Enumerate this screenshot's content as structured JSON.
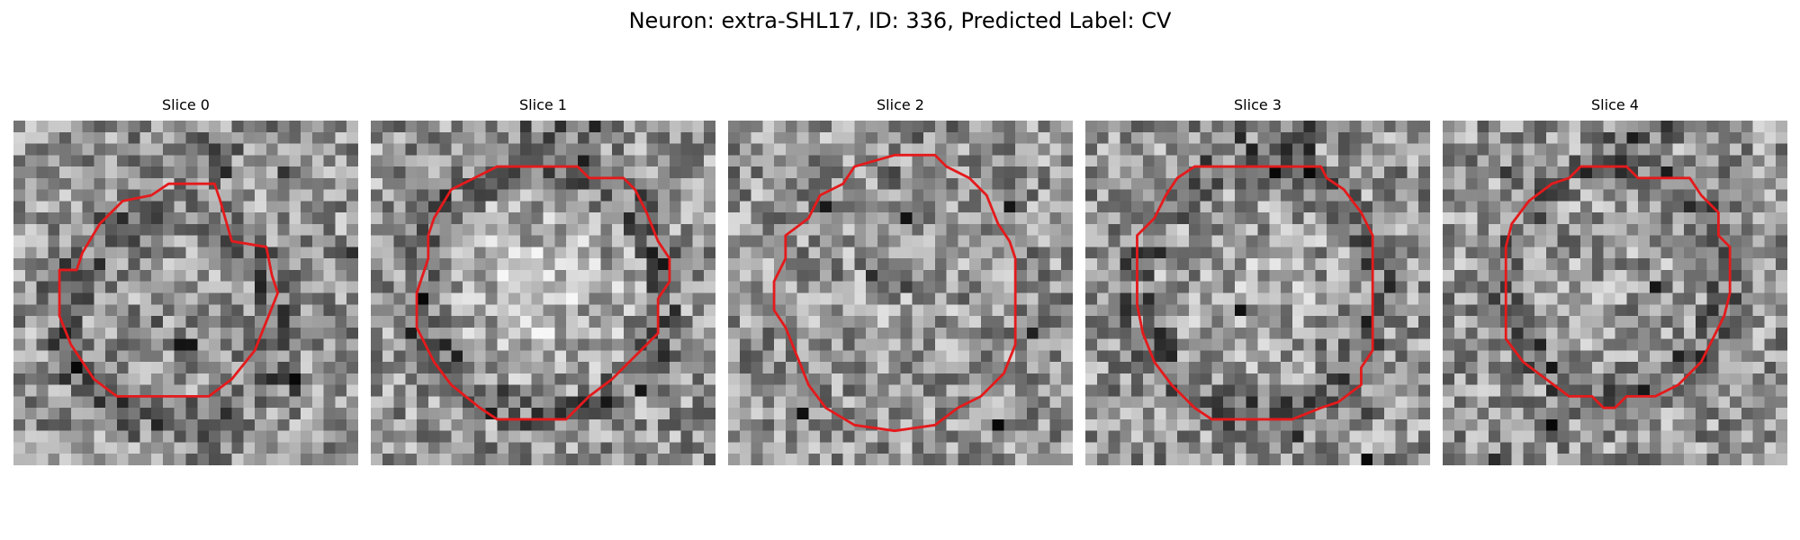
{
  "figure": {
    "title": "Neuron: extra-SHL17, ID: 336, Predicted Label: CV"
  },
  "colors": {
    "contour": "#e41a1c",
    "background": "#ffffff"
  },
  "panels": [
    {
      "title": "Slice 0",
      "seed": 101
    },
    {
      "title": "Slice 1",
      "seed": 202
    },
    {
      "title": "Slice 2",
      "seed": 303
    },
    {
      "title": "Slice 3",
      "seed": 404
    },
    {
      "title": "Slice 4",
      "seed": 505
    }
  ]
}
